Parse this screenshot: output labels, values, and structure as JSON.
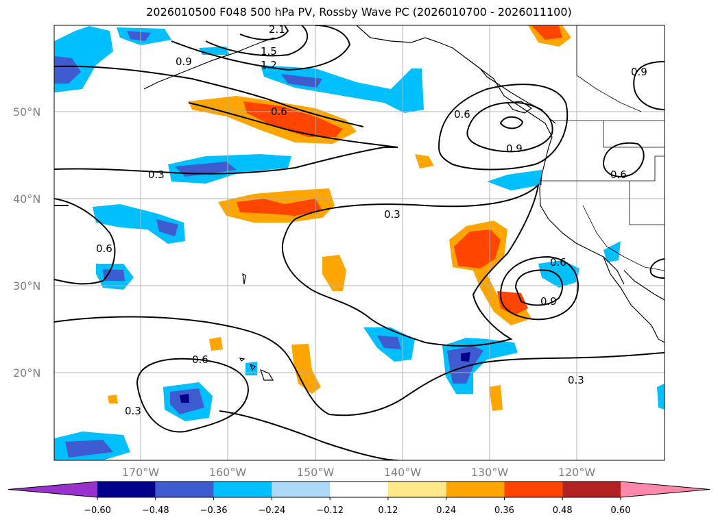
{
  "title": "2026010500 F048 500 hPa PV, Rossby Wave PC (2026010700 - 2026011100)",
  "lon_ticks": [
    "170°W",
    "160°W",
    "150°W",
    "140°W",
    "130°W",
    "120°W"
  ],
  "lat_ticks": [
    "50°N",
    "40°N",
    "30°N",
    "20°N"
  ],
  "contour_labels": [
    "2.1",
    "1.5",
    "1.2",
    "0.9",
    "0.6",
    "0.3",
    "0.6",
    "0.9",
    "0.6",
    "0.3",
    "0.6",
    "0.9",
    "0.6",
    "0.3",
    "0.6",
    "0.3",
    "0.9"
  ],
  "colorbar": {
    "ticks": [
      "−0.60",
      "−0.48",
      "−0.36",
      "−0.24",
      "−0.12",
      "0.12",
      "0.24",
      "0.36",
      "0.48",
      "0.60"
    ],
    "colors": [
      "#9932cc",
      "#00008b",
      "#3f5bd0",
      "#00bfff",
      "#add8f7",
      "#ffffff",
      "#ffe88a",
      "#ffa500",
      "#ff4500",
      "#b22222",
      "#ff88aa"
    ]
  }
}
